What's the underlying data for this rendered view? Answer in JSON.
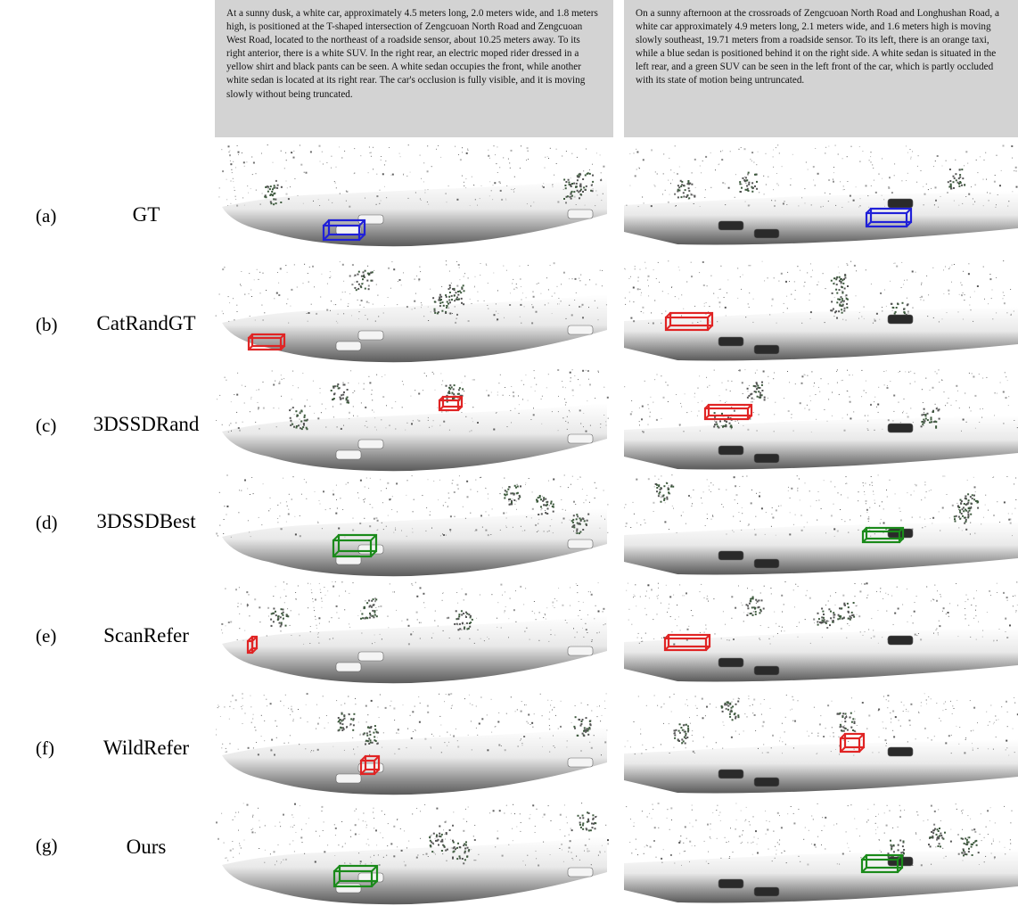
{
  "descriptions": [
    "At a sunny dusk, a white car, approximately 4.5 meters long, 2.0 meters wide, and 1.8 meters high, is positioned at the T-shaped intersection of Zengcuoan North Road and Zengcuoan West Road, located to the northeast of a roadside sensor, about 10.25 meters away. To its right anterior, there is a white SUV. In the right rear, an electric moped rider dressed in a yellow shirt and black pants can be seen. A white sedan occupies the front, while another white sedan is located at its right rear. The car's occlusion is fully visible, and it is moving slowly without being truncated.",
    "On a sunny afternoon at the crossroads of Zengcuoan North Road and Longhushan Road, a white car approximately 4.9 meters long, 2.1 meters wide, and 1.6 meters high is moving slowly southeast, 19.71 meters from a roadside sensor. To its left, there is an orange taxi, while a blue sedan is positioned behind it on the right side. A white sedan is situated in the left rear, and a green SUV can be seen in the left front of the car, which is partly occluded with its state of motion being untruncated."
  ],
  "rows": [
    {
      "letter": "(a)",
      "method": "GT",
      "box_colors": [
        "blue",
        "blue"
      ]
    },
    {
      "letter": "(b)",
      "method": "CatRandGT",
      "box_colors": [
        "red",
        "red"
      ]
    },
    {
      "letter": "(c)",
      "method": "3DSSDRand",
      "box_colors": [
        "red",
        "red"
      ]
    },
    {
      "letter": "(d)",
      "method": "3DSSDBest",
      "box_colors": [
        "green",
        "green"
      ]
    },
    {
      "letter": "(e)",
      "method": "ScanRefer",
      "box_colors": [
        "red",
        "red"
      ]
    },
    {
      "letter": "(f)",
      "method": "WildRefer",
      "box_colors": [
        "red",
        "red"
      ]
    },
    {
      "letter": "(g)",
      "method": "Ours",
      "box_colors": [
        "green",
        "green"
      ]
    }
  ],
  "colors": {
    "blue": "#2020d8",
    "red": "#e02424",
    "green": "#1a8a1a",
    "caption_bg": "#d3d3d3"
  }
}
